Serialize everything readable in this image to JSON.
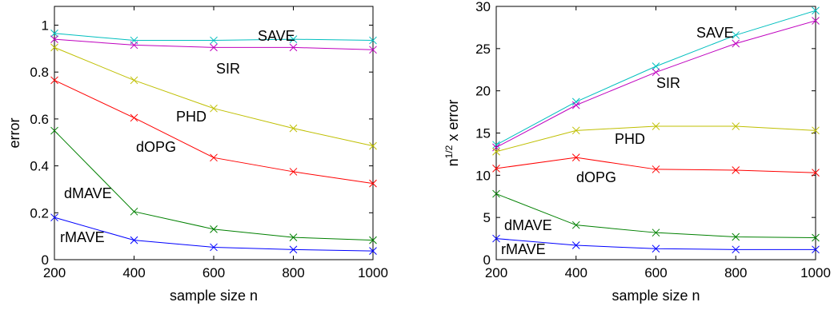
{
  "chart_data": [
    {
      "type": "line",
      "xlabel": "sample size n",
      "ylabel": "error",
      "ylabel_superscript": "",
      "ylabel_suffix": "",
      "x": [
        200,
        400,
        600,
        800,
        1000
      ],
      "xlim": [
        200,
        1000
      ],
      "ylim": [
        0,
        1.08
      ],
      "xticks": [
        200,
        400,
        600,
        800,
        1000
      ],
      "yticks": [
        0,
        0.2,
        0.4,
        0.6,
        0.8,
        1
      ],
      "ytick_labels": [
        "0",
        "0.2",
        "0.4",
        "0.6",
        "0.8",
        "1"
      ],
      "grid": false,
      "marker": "x",
      "series": [
        {
          "name": "SAVE",
          "color": "#00bfbf",
          "values": [
            0.965,
            0.935,
            0.935,
            0.94,
            0.935
          ]
        },
        {
          "name": "SIR",
          "color": "#bf00bf",
          "values": [
            0.94,
            0.915,
            0.905,
            0.905,
            0.895
          ]
        },
        {
          "name": "PHD",
          "color": "#bfbf00",
          "values": [
            0.905,
            0.765,
            0.645,
            0.56,
            0.485
          ]
        },
        {
          "name": "dOPG",
          "color": "#ff0000",
          "values": [
            0.765,
            0.605,
            0.435,
            0.375,
            0.325
          ]
        },
        {
          "name": "dMAVE",
          "color": "#008000",
          "values": [
            0.55,
            0.205,
            0.13,
            0.095,
            0.083
          ]
        },
        {
          "name": "rMAVE",
          "color": "#0000ff",
          "values": [
            0.18,
            0.083,
            0.053,
            0.043,
            0.037
          ]
        }
      ]
    },
    {
      "type": "line",
      "xlabel": "sample size n",
      "ylabel": "n",
      "ylabel_superscript": "1/2",
      "ylabel_suffix": " x error",
      "x": [
        200,
        400,
        600,
        800,
        1000
      ],
      "xlim": [
        200,
        1000
      ],
      "ylim": [
        0,
        30
      ],
      "xticks": [
        200,
        400,
        600,
        800,
        1000
      ],
      "yticks": [
        0,
        5,
        10,
        15,
        20,
        25,
        30
      ],
      "ytick_labels": [
        "0",
        "5",
        "10",
        "15",
        "20",
        "25",
        "30"
      ],
      "grid": false,
      "marker": "x",
      "series": [
        {
          "name": "SAVE",
          "color": "#00bfbf",
          "values": [
            13.6,
            18.7,
            22.9,
            26.6,
            29.5
          ]
        },
        {
          "name": "SIR",
          "color": "#bf00bf",
          "values": [
            13.3,
            18.3,
            22.2,
            25.6,
            28.3
          ]
        },
        {
          "name": "PHD",
          "color": "#bfbf00",
          "values": [
            12.8,
            15.3,
            15.8,
            15.8,
            15.3
          ]
        },
        {
          "name": "dOPG",
          "color": "#ff0000",
          "values": [
            10.8,
            12.1,
            10.7,
            10.6,
            10.3
          ]
        },
        {
          "name": "dMAVE",
          "color": "#008000",
          "values": [
            7.8,
            4.1,
            3.2,
            2.7,
            2.6
          ]
        },
        {
          "name": "rMAVE",
          "color": "#0000ff",
          "values": [
            2.5,
            1.7,
            1.3,
            1.2,
            1.2
          ]
        }
      ]
    }
  ]
}
